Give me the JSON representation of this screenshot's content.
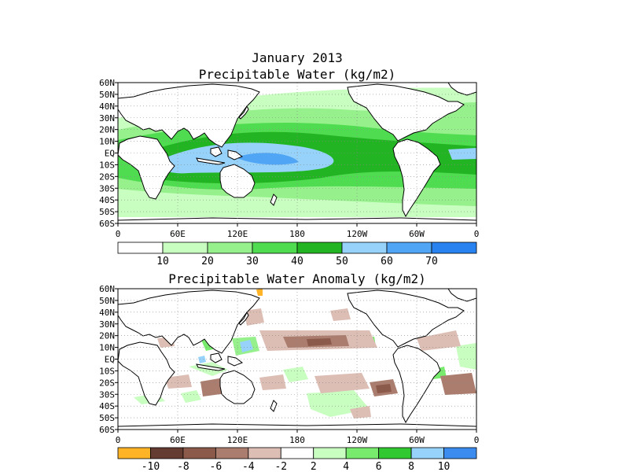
{
  "map1": {
    "title_line1": "January 2013",
    "title_line2": "Precipitable Water (kg/m2)",
    "colorbar": {
      "colors": [
        "#ffffff",
        "#c8ffc0",
        "#96f08c",
        "#50dc50",
        "#23b423",
        "#96d2fa",
        "#50a5f5",
        "#2882f0"
      ],
      "labels": [
        "10",
        "20",
        "30",
        "40",
        "50",
        "60",
        "70"
      ]
    }
  },
  "map2": {
    "title": "Precipitable Water Anomaly (kg/m2)",
    "colorbar": {
      "colors": [
        "#ffb428",
        "#643c32",
        "#8c5a4b",
        "#aa7d6e",
        "#dcbeb4",
        "#ffffff",
        "#c8ffc0",
        "#78eb6e",
        "#32c832",
        "#96d2fa",
        "#3c8cf0"
      ],
      "labels": [
        "-10",
        "-8",
        "-6",
        "-4",
        "-2",
        "2",
        "4",
        "6",
        "8",
        "10"
      ]
    }
  },
  "axes": {
    "lat_labels": [
      "60N",
      "50N",
      "40N",
      "30N",
      "20N",
      "10N",
      "EQ",
      "10S",
      "20S",
      "30S",
      "40S",
      "50S",
      "60S"
    ],
    "lon_labels": [
      "0",
      "60E",
      "120E",
      "180",
      "120W",
      "60W",
      "0"
    ]
  }
}
